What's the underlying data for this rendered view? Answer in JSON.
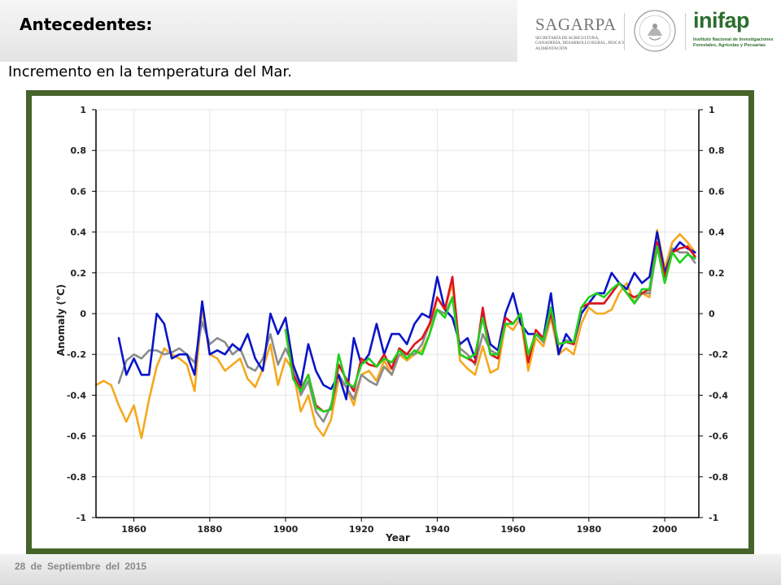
{
  "header": {
    "title": "Antecedentes:",
    "subtitle": "Incremento en la temperatura del Mar."
  },
  "logos": {
    "sagarpa": {
      "name": "SAGARPA",
      "tagline": "SECRETARÍA DE AGRICULTURA, GANADERÍA, DESARROLLO RURAL, PESCA Y ALIMENTACIÓN"
    },
    "seal": {
      "icon": "mexico-coat-of-arms-icon"
    },
    "inifap": {
      "name": "inifap",
      "tagline": "Instituto Nacional de Investigaciones Forestales, Agrícolas y Pecuarias"
    }
  },
  "footer": {
    "date": "28 de Septiembre del 2015"
  },
  "colors": {
    "frame": "#46632a",
    "blue": "#0a14c8",
    "gray": "#8c8c8c",
    "orange": "#f5a81e",
    "red": "#e0141e",
    "green": "#1ed21e",
    "axis": "#000000",
    "grid": "#e6e6e6"
  },
  "chart_data": {
    "type": "line",
    "xlabel": "Year",
    "ylabel": "Anomaly (°C)",
    "xlim": [
      1850,
      2009
    ],
    "ylim": [
      -1,
      1
    ],
    "xticks": [
      1860,
      1880,
      1900,
      1920,
      1940,
      1960,
      1980,
      2000
    ],
    "yticks": [
      -1,
      -0.8,
      -0.6,
      -0.4,
      -0.2,
      0,
      0.2,
      0.4,
      0.6,
      0.8,
      1
    ],
    "ytick_labels": [
      "-1",
      "-0.8",
      "-0.6",
      "-0.4",
      "-0.2",
      "0",
      "0.2",
      "0.4",
      "0.6",
      "0.8",
      "1"
    ],
    "grid": true,
    "dual_y_axis": true,
    "series": [
      {
        "color": "orange",
        "x": [
          1850,
          1852,
          1854,
          1856,
          1858,
          1860,
          1862,
          1864,
          1866,
          1868,
          1870,
          1872,
          1874,
          1876,
          1878,
          1880,
          1882,
          1884,
          1886,
          1888,
          1890,
          1892,
          1894,
          1896,
          1898,
          1900,
          1902,
          1904,
          1906,
          1908,
          1910,
          1912,
          1914,
          1916,
          1918,
          1920,
          1922,
          1924,
          1926,
          1928,
          1930,
          1932,
          1934,
          1936,
          1938,
          1940,
          1942,
          1944,
          1946,
          1948,
          1950,
          1952,
          1954,
          1956,
          1958,
          1960,
          1962,
          1964,
          1966,
          1968,
          1970,
          1972,
          1974,
          1976,
          1978,
          1980,
          1982,
          1984,
          1986,
          1988,
          1990,
          1992,
          1994,
          1996,
          1998,
          2000,
          2002,
          2004,
          2006,
          2008
        ],
        "y": [
          -0.35,
          -0.33,
          -0.35,
          -0.45,
          -0.53,
          -0.45,
          -0.61,
          -0.42,
          -0.26,
          -0.17,
          -0.2,
          -0.22,
          -0.25,
          -0.38,
          0.03,
          -0.2,
          -0.22,
          -0.28,
          -0.25,
          -0.22,
          -0.32,
          -0.36,
          -0.27,
          -0.15,
          -0.35,
          -0.22,
          -0.28,
          -0.48,
          -0.4,
          -0.55,
          -0.6,
          -0.52,
          -0.32,
          -0.36,
          -0.45,
          -0.3,
          -0.28,
          -0.33,
          -0.23,
          -0.3,
          -0.2,
          -0.23,
          -0.2,
          -0.18,
          -0.1,
          0.08,
          0.02,
          0.15,
          -0.23,
          -0.27,
          -0.3,
          -0.16,
          -0.29,
          -0.27,
          -0.05,
          -0.08,
          -0.02,
          -0.28,
          -0.12,
          -0.16,
          -0.02,
          -0.2,
          -0.17,
          -0.2,
          -0.05,
          0.03,
          0.0,
          0.0,
          0.02,
          0.1,
          0.15,
          0.05,
          0.1,
          0.08,
          0.41,
          0.22,
          0.35,
          0.39,
          0.35,
          0.3
        ]
      },
      {
        "color": "gray",
        "x": [
          1856,
          1858,
          1860,
          1862,
          1864,
          1866,
          1868,
          1870,
          1872,
          1874,
          1876,
          1878,
          1880,
          1882,
          1884,
          1886,
          1888,
          1890,
          1892,
          1894,
          1896,
          1898,
          1900,
          1902,
          1904,
          1906,
          1908,
          1910,
          1912,
          1914,
          1916,
          1918,
          1920,
          1922,
          1924,
          1926,
          1928,
          1930,
          1932,
          1934,
          1936,
          1938,
          1940,
          1942,
          1944,
          1946,
          1948,
          1950,
          1952,
          1954,
          1956,
          1958,
          1960,
          1962,
          1964,
          1966,
          1968,
          1970,
          1972,
          1974,
          1976,
          1978,
          1980,
          1982,
          1984,
          1986,
          1988,
          1990,
          1992,
          1994,
          1996,
          1998,
          2000,
          2002,
          2004,
          2006,
          2008
        ],
        "y": [
          -0.34,
          -0.23,
          -0.2,
          -0.22,
          -0.18,
          -0.18,
          -0.2,
          -0.19,
          -0.17,
          -0.2,
          -0.24,
          -0.04,
          -0.15,
          -0.12,
          -0.14,
          -0.2,
          -0.17,
          -0.26,
          -0.28,
          -0.22,
          -0.1,
          -0.25,
          -0.17,
          -0.25,
          -0.4,
          -0.33,
          -0.48,
          -0.53,
          -0.45,
          -0.3,
          -0.36,
          -0.42,
          -0.3,
          -0.33,
          -0.35,
          -0.26,
          -0.3,
          -0.2,
          -0.2,
          -0.2,
          -0.15,
          -0.05,
          0.02,
          0.0,
          0.08,
          -0.17,
          -0.2,
          -0.25,
          -0.1,
          -0.18,
          -0.2,
          -0.02,
          -0.05,
          0.0,
          -0.2,
          -0.1,
          -0.14,
          0.0,
          -0.18,
          -0.13,
          -0.14,
          0.0,
          0.05,
          0.05,
          0.05,
          0.1,
          0.15,
          0.1,
          0.05,
          0.1,
          0.1,
          0.32,
          0.2,
          0.32,
          0.3,
          0.3,
          0.25
        ]
      },
      {
        "color": "blue",
        "x": [
          1856,
          1858,
          1860,
          1862,
          1864,
          1866,
          1868,
          1870,
          1872,
          1874,
          1876,
          1878,
          1880,
          1882,
          1884,
          1886,
          1888,
          1890,
          1892,
          1894,
          1896,
          1898,
          1900,
          1902,
          1904,
          1906,
          1908,
          1910,
          1912,
          1914,
          1916,
          1918,
          1920,
          1922,
          1924,
          1926,
          1928,
          1930,
          1932,
          1934,
          1936,
          1938,
          1940,
          1942,
          1944,
          1946,
          1948,
          1950,
          1952,
          1954,
          1956,
          1958,
          1960,
          1962,
          1964,
          1966,
          1968,
          1970,
          1972,
          1974,
          1976,
          1978,
          1980,
          1982,
          1984,
          1986,
          1988,
          1990,
          1992,
          1994,
          1996,
          1998,
          2000,
          2002,
          2004,
          2006,
          2008
        ],
        "y": [
          -0.12,
          -0.3,
          -0.22,
          -0.3,
          -0.3,
          0.0,
          -0.05,
          -0.22,
          -0.2,
          -0.2,
          -0.3,
          0.06,
          -0.2,
          -0.18,
          -0.2,
          -0.15,
          -0.18,
          -0.1,
          -0.22,
          -0.28,
          0.0,
          -0.1,
          -0.02,
          -0.25,
          -0.35,
          -0.15,
          -0.28,
          -0.35,
          -0.37,
          -0.3,
          -0.42,
          -0.12,
          -0.25,
          -0.2,
          -0.05,
          -0.2,
          -0.1,
          -0.1,
          -0.15,
          -0.05,
          0.0,
          -0.02,
          0.18,
          0.02,
          -0.02,
          -0.15,
          -0.12,
          -0.22,
          0.0,
          -0.15,
          -0.18,
          0.0,
          0.1,
          -0.05,
          -0.1,
          -0.1,
          -0.12,
          0.1,
          -0.2,
          -0.1,
          -0.15,
          0.0,
          0.05,
          0.1,
          0.1,
          0.2,
          0.15,
          0.12,
          0.2,
          0.15,
          0.18,
          0.4,
          0.2,
          0.3,
          0.35,
          0.32,
          0.3
        ]
      },
      {
        "color": "red",
        "x": [
          1900,
          1902,
          1904,
          1906,
          1908,
          1910,
          1912,
          1914,
          1916,
          1918,
          1920,
          1922,
          1924,
          1926,
          1928,
          1930,
          1932,
          1934,
          1936,
          1938,
          1940,
          1942,
          1944,
          1946,
          1948,
          1950,
          1952,
          1954,
          1956,
          1958,
          1960,
          1962,
          1964,
          1966,
          1968,
          1970,
          1972,
          1974,
          1976,
          1978,
          1980,
          1982,
          1984,
          1986,
          1988,
          1990,
          1992,
          1994,
          1996,
          1998,
          2000,
          2002,
          2004,
          2006,
          2008
        ],
        "y": [
          -0.08,
          -0.3,
          -0.37,
          -0.3,
          -0.45,
          -0.48,
          -0.47,
          -0.25,
          -0.32,
          -0.38,
          -0.22,
          -0.25,
          -0.26,
          -0.2,
          -0.27,
          -0.17,
          -0.2,
          -0.15,
          -0.12,
          -0.05,
          0.08,
          0.02,
          0.18,
          -0.2,
          -0.22,
          -0.24,
          0.03,
          -0.2,
          -0.22,
          -0.02,
          -0.05,
          0.0,
          -0.24,
          -0.08,
          -0.12,
          0.0,
          -0.15,
          -0.14,
          -0.15,
          0.03,
          0.05,
          0.05,
          0.05,
          0.1,
          0.15,
          0.1,
          0.08,
          0.1,
          0.12,
          0.35,
          0.18,
          0.3,
          0.32,
          0.33,
          0.28
        ]
      },
      {
        "color": "green",
        "x": [
          1900,
          1902,
          1904,
          1906,
          1908,
          1910,
          1912,
          1914,
          1916,
          1918,
          1920,
          1922,
          1924,
          1926,
          1928,
          1930,
          1932,
          1934,
          1936,
          1938,
          1940,
          1942,
          1944,
          1946,
          1948,
          1950,
          1952,
          1954,
          1956,
          1958,
          1960,
          1962,
          1964,
          1966,
          1968,
          1970,
          1972,
          1974,
          1976,
          1978,
          1980,
          1982,
          1984,
          1986,
          1988,
          1990,
          1992,
          1994,
          1996,
          1998,
          2000,
          2002,
          2004,
          2006,
          2008
        ],
        "y": [
          -0.08,
          -0.32,
          -0.38,
          -0.3,
          -0.46,
          -0.48,
          -0.47,
          -0.2,
          -0.34,
          -0.36,
          -0.25,
          -0.22,
          -0.26,
          -0.22,
          -0.24,
          -0.18,
          -0.22,
          -0.18,
          -0.2,
          -0.1,
          0.02,
          -0.02,
          0.08,
          -0.2,
          -0.22,
          -0.2,
          -0.02,
          -0.2,
          -0.2,
          -0.05,
          -0.05,
          0.0,
          -0.2,
          -0.1,
          -0.13,
          0.03,
          -0.15,
          -0.14,
          -0.14,
          0.03,
          0.08,
          0.1,
          0.08,
          0.12,
          0.15,
          0.1,
          0.05,
          0.12,
          0.12,
          0.33,
          0.15,
          0.3,
          0.25,
          0.29,
          0.27
        ]
      }
    ]
  }
}
